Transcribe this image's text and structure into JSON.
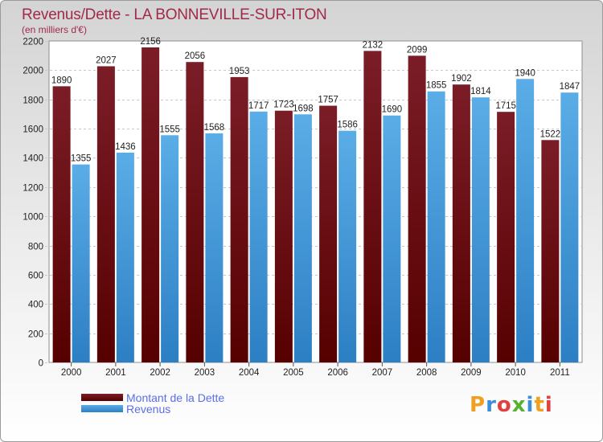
{
  "title": "Revenus/Dette - LA BONNEVILLE-SUR-ITON",
  "subtitle": "(en milliers d'€)",
  "logo_text": "Proxiti",
  "colors": {
    "dette": "#7b1d27",
    "dette_dark": "#560000",
    "revenus": "#5aade6",
    "revenus_dark": "#2d7fc4",
    "title": "#a02a4a",
    "legend_text": "#5a6ee6"
  },
  "chart_data": {
    "type": "bar",
    "title": "Revenus/Dette - LA BONNEVILLE-SUR-ITON",
    "ylabel": "(en milliers d'€)",
    "xlabel": "",
    "ylim": [
      0,
      2200
    ],
    "yticks": [
      0,
      200,
      400,
      600,
      800,
      1000,
      1200,
      1400,
      1600,
      1800,
      2000,
      2200
    ],
    "grid": true,
    "legend_position": "bottom-left",
    "categories": [
      "2000",
      "2001",
      "2002",
      "2003",
      "2004",
      "2005",
      "2006",
      "2007",
      "2008",
      "2009",
      "2010",
      "2011"
    ],
    "series": [
      {
        "name": "Montant de la Dette",
        "values": [
          1890,
          2027,
          2156,
          2056,
          1953,
          1723,
          1757,
          2132,
          2099,
          1902,
          1715,
          1522
        ]
      },
      {
        "name": "Revenus",
        "values": [
          1355,
          1436,
          1555,
          1568,
          1717,
          1698,
          1586,
          1690,
          1855,
          1814,
          1940,
          1847
        ]
      }
    ]
  }
}
